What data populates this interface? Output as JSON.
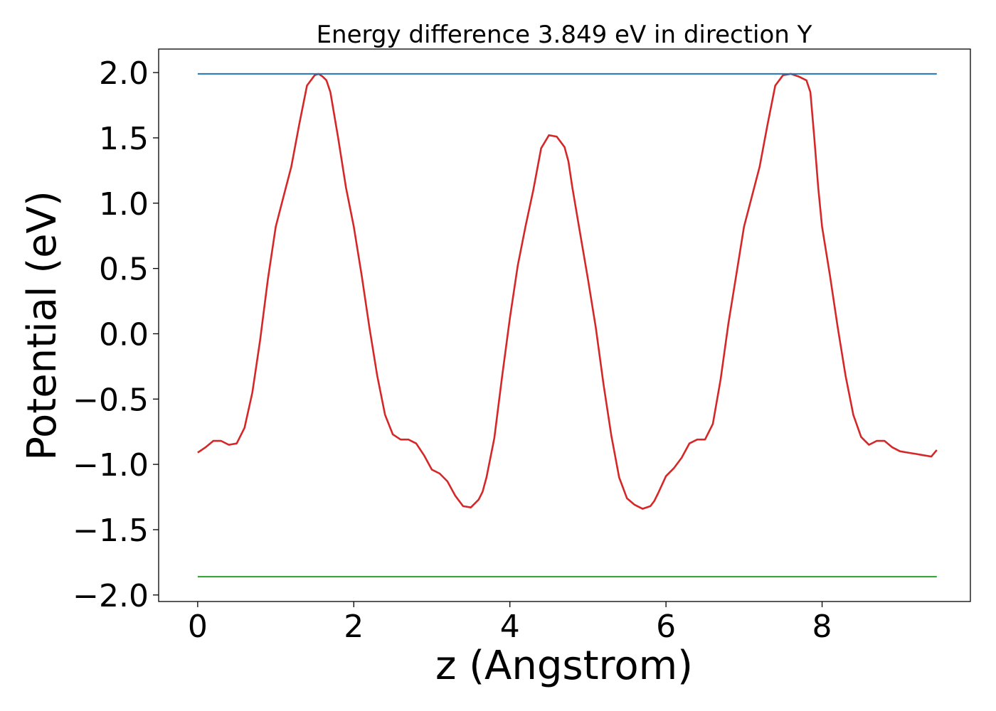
{
  "chart_data": {
    "type": "line",
    "title": "Energy difference 3.849 eV in direction Y",
    "xlabel": "z (Angstrom)",
    "ylabel": "Potential (eV)",
    "xlim": [
      -0.5,
      9.9
    ],
    "ylim": [
      -2.05,
      2.18
    ],
    "xticks": [
      0,
      2,
      4,
      6,
      8
    ],
    "xtick_labels": [
      "0",
      "2",
      "4",
      "6",
      "8"
    ],
    "yticks": [
      2.0,
      1.5,
      1.0,
      0.5,
      0.0,
      -0.5,
      -1.0,
      -1.5,
      -2.0
    ],
    "ytick_labels": [
      "2.0",
      "1.5",
      "1.0",
      "0.5",
      "0.0",
      "−0.5",
      "−1.0",
      "−1.5",
      "−2.0"
    ],
    "grid": false,
    "series": [
      {
        "color": "#d62728",
        "x": [
          0.0,
          0.1,
          0.2,
          0.3,
          0.4,
          0.5,
          0.6,
          0.7,
          0.8,
          0.9,
          1.0,
          1.1,
          1.2,
          1.3,
          1.4,
          1.5,
          1.55,
          1.6,
          1.65,
          1.7,
          1.8,
          1.9,
          2.0,
          2.1,
          2.2,
          2.3,
          2.4,
          2.5,
          2.6,
          2.7,
          2.8,
          2.9,
          3.0,
          3.1,
          3.2,
          3.3,
          3.4,
          3.5,
          3.6,
          3.65,
          3.7,
          3.8,
          3.9,
          4.0,
          4.1,
          4.2,
          4.3,
          4.4,
          4.5,
          4.6,
          4.7,
          4.75,
          4.8,
          4.9,
          5.0,
          5.1,
          5.2,
          5.3,
          5.4,
          5.5,
          5.6,
          5.7,
          5.8,
          5.85,
          5.9,
          6.0,
          6.1,
          6.2,
          6.3,
          6.4,
          6.5,
          6.6,
          6.7,
          6.8,
          6.9,
          7.0,
          7.1,
          7.2,
          7.3,
          7.4,
          7.5,
          7.6,
          7.7,
          7.8,
          7.85,
          7.9,
          7.95,
          8.0,
          8.1,
          8.2,
          8.3,
          8.4,
          8.5,
          8.6,
          8.7,
          8.8,
          8.9,
          9.0,
          9.1,
          9.2,
          9.3,
          9.4,
          9.47
        ],
        "y": [
          -0.91,
          -0.87,
          -0.82,
          -0.82,
          -0.85,
          -0.84,
          -0.72,
          -0.45,
          -0.05,
          0.42,
          0.82,
          1.05,
          1.28,
          1.6,
          1.9,
          1.98,
          1.99,
          1.97,
          1.94,
          1.85,
          1.5,
          1.12,
          0.82,
          0.45,
          0.05,
          -0.32,
          -0.62,
          -0.77,
          -0.81,
          -0.81,
          -0.84,
          -0.93,
          -1.04,
          -1.07,
          -1.13,
          -1.24,
          -1.32,
          -1.33,
          -1.27,
          -1.21,
          -1.1,
          -0.8,
          -0.33,
          0.12,
          0.52,
          0.82,
          1.1,
          1.42,
          1.52,
          1.51,
          1.43,
          1.32,
          1.12,
          0.77,
          0.42,
          0.05,
          -0.39,
          -0.78,
          -1.1,
          -1.26,
          -1.31,
          -1.34,
          -1.32,
          -1.28,
          -1.22,
          -1.09,
          -1.03,
          -0.95,
          -0.84,
          -0.81,
          -0.81,
          -0.69,
          -0.35,
          0.08,
          0.45,
          0.82,
          1.05,
          1.28,
          1.6,
          1.9,
          1.98,
          1.99,
          1.97,
          1.94,
          1.85,
          1.5,
          1.12,
          0.82,
          0.45,
          0.05,
          -0.32,
          -0.62,
          -0.79,
          -0.85,
          -0.82,
          -0.82,
          -0.87,
          -0.9,
          -0.91,
          -0.92,
          -0.93,
          -0.94,
          -0.89
        ]
      },
      {
        "color": "#1f77b4",
        "x": [
          0.0,
          9.47
        ],
        "y": [
          1.99,
          1.99
        ]
      },
      {
        "color": "#2ca02c",
        "x": [
          0.0,
          9.47
        ],
        "y": [
          -1.86,
          -1.86
        ]
      }
    ]
  }
}
